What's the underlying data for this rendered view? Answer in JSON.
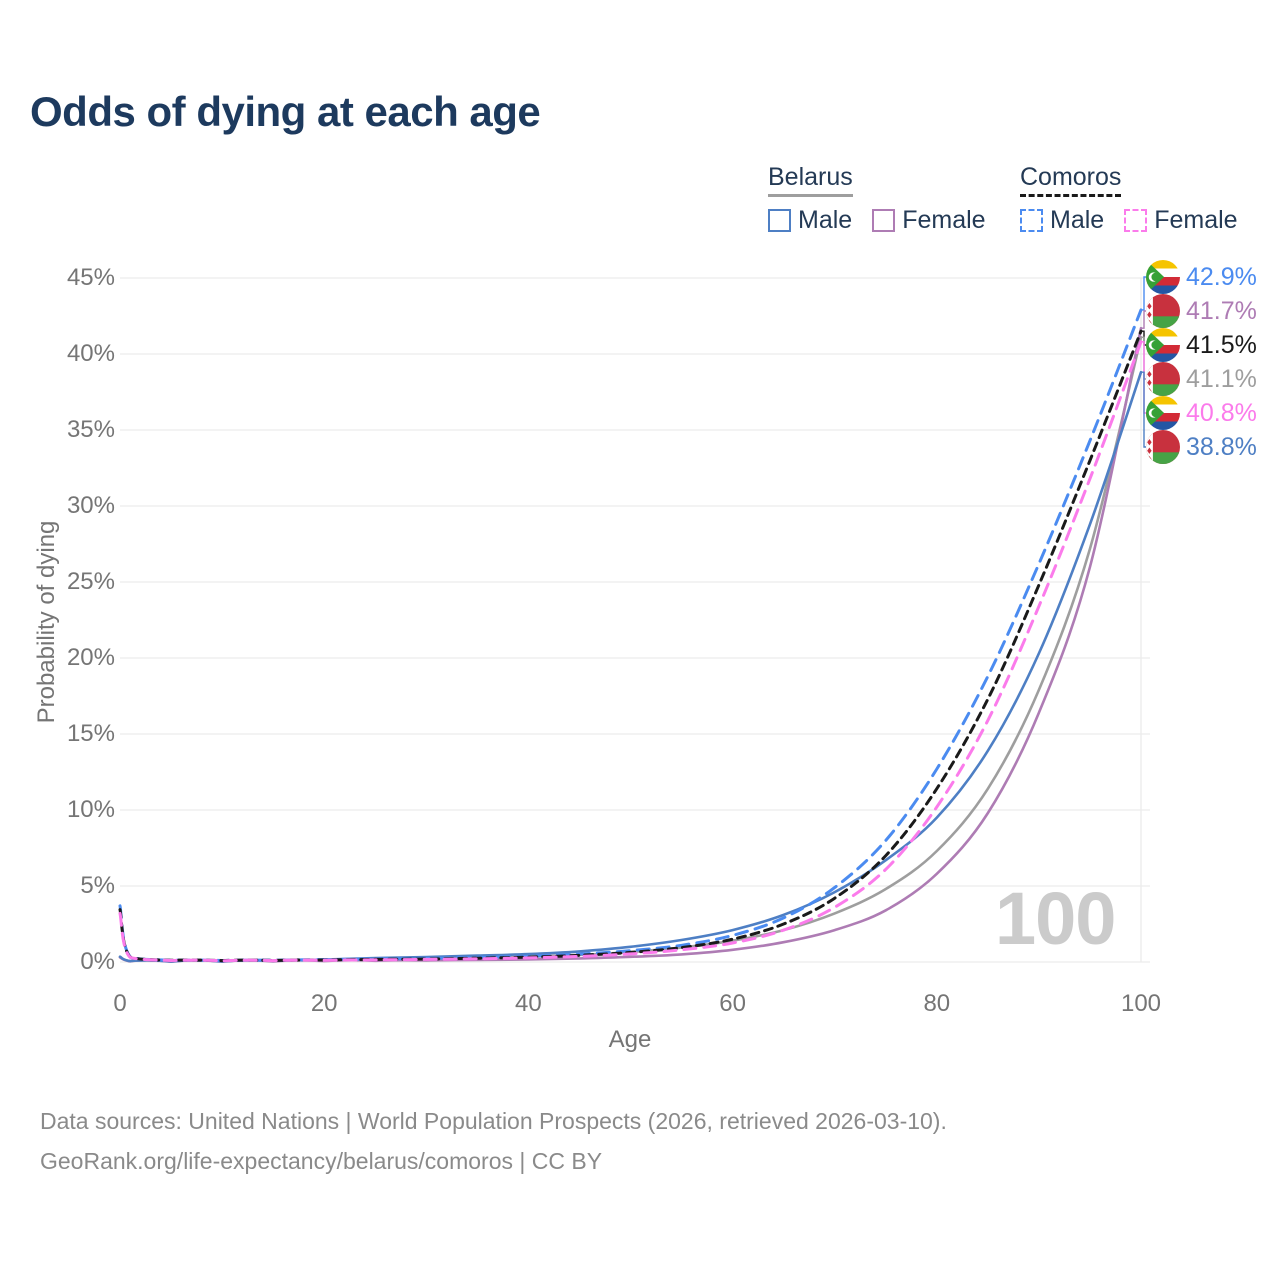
{
  "title": "Odds of dying at each age",
  "legend": {
    "groups": [
      {
        "name": "Belarus",
        "line_style": "solid",
        "underline_color": "#9e9e9e",
        "items": [
          {
            "label": "Male",
            "color": "#4e7fc4"
          },
          {
            "label": "Female",
            "color": "#ae7cb4"
          }
        ]
      },
      {
        "name": "Comoros",
        "line_style": "dashed",
        "underline_color": "#1a1a1a",
        "items": [
          {
            "label": "Male",
            "color": "#4b8bf0"
          },
          {
            "label": "Female",
            "color": "#fb7beb"
          }
        ]
      }
    ]
  },
  "chart_data": {
    "type": "line",
    "title": "Odds of dying at each age",
    "xlabel": "Age",
    "ylabel": "Probability of dying",
    "xlim": [
      0,
      100
    ],
    "ylim": [
      0,
      45
    ],
    "grid": "horizontal",
    "xticks": [
      "0",
      "20",
      "40",
      "60",
      "80",
      "100"
    ],
    "yticks": [
      "0%",
      "5%",
      "10%",
      "15%",
      "20%",
      "25%",
      "30%",
      "35%",
      "40%",
      "45%"
    ],
    "x": [
      0,
      1,
      5,
      10,
      15,
      20,
      25,
      30,
      35,
      40,
      45,
      50,
      55,
      60,
      65,
      70,
      75,
      80,
      85,
      90,
      95,
      100
    ],
    "series": [
      {
        "id": "belarus-total",
        "name": "Belarus",
        "color": "#9e9e9e",
        "dash": "",
        "values": [
          0.33,
          0.05,
          0.03,
          0.03,
          0.06,
          0.11,
          0.17,
          0.22,
          0.28,
          0.35,
          0.47,
          0.66,
          0.95,
          1.4,
          2.1,
          3.2,
          4.8,
          7.3,
          11.4,
          17.9,
          27.2,
          41.1
        ]
      },
      {
        "id": "belarus-female",
        "name": "Belarus Female",
        "color": "#ae7cb4",
        "dash": "",
        "values": [
          0.3,
          0.04,
          0.02,
          0.02,
          0.04,
          0.06,
          0.08,
          0.1,
          0.13,
          0.17,
          0.24,
          0.34,
          0.5,
          0.8,
          1.3,
          2.1,
          3.4,
          5.8,
          9.8,
          16.4,
          26.0,
          41.7
        ]
      },
      {
        "id": "belarus-male",
        "name": "Belarus Male",
        "color": "#4e7fc4",
        "dash": "",
        "values": [
          0.35,
          0.06,
          0.03,
          0.03,
          0.08,
          0.16,
          0.26,
          0.33,
          0.42,
          0.52,
          0.7,
          1.0,
          1.45,
          2.1,
          3.1,
          4.6,
          6.7,
          9.5,
          13.9,
          20.3,
          28.8,
          38.8
        ]
      },
      {
        "id": "comoros-male",
        "name": "Comoros Male",
        "color": "#4b8bf0",
        "dash": "12 8",
        "values": [
          3.7,
          0.35,
          0.12,
          0.1,
          0.12,
          0.16,
          0.2,
          0.24,
          0.3,
          0.38,
          0.52,
          0.75,
          1.1,
          1.75,
          2.9,
          4.9,
          8.0,
          12.7,
          18.8,
          26.2,
          34.3,
          42.9
        ]
      },
      {
        "id": "comoros-total",
        "name": "Comoros",
        "color": "#1a1a1a",
        "dash": "8 6",
        "values": [
          3.45,
          0.32,
          0.11,
          0.09,
          0.1,
          0.13,
          0.17,
          0.2,
          0.25,
          0.32,
          0.44,
          0.63,
          0.95,
          1.5,
          2.5,
          4.2,
          7.0,
          11.4,
          17.3,
          24.8,
          33.0,
          41.5
        ]
      },
      {
        "id": "comoros-female",
        "name": "Comoros Female",
        "color": "#fb7beb",
        "dash": "12 8",
        "values": [
          3.2,
          0.3,
          0.1,
          0.08,
          0.09,
          0.11,
          0.14,
          0.17,
          0.21,
          0.27,
          0.37,
          0.53,
          0.8,
          1.25,
          2.1,
          3.6,
          6.1,
          10.2,
          15.9,
          23.4,
          31.8,
          40.8
        ]
      }
    ],
    "end_labels": [
      {
        "text": "42.9%",
        "num": 42.9,
        "flag": "comoros",
        "color": "#4b8bf0"
      },
      {
        "text": "41.7%",
        "num": 41.7,
        "flag": "belarus",
        "color": "#ae7cb4"
      },
      {
        "text": "41.5%",
        "num": 41.5,
        "flag": "comoros",
        "color": "#1a1a1a"
      },
      {
        "text": "41.1%",
        "num": 41.1,
        "flag": "belarus",
        "color": "#9e9e9e"
      },
      {
        "text": "40.8%",
        "num": 40.8,
        "flag": "comoros",
        "color": "#fb7beb"
      },
      {
        "text": "38.8%",
        "num": 38.8,
        "flag": "belarus",
        "color": "#4e7fc4"
      }
    ],
    "watermark": "100",
    "legend_position": "top-right"
  },
  "footer": {
    "line1": "Data sources: United Nations | World Population Prospects (2026, retrieved 2026-03-10).",
    "line2": "GeoRank.org/life-expectancy/belarus/comoros | CC BY"
  }
}
